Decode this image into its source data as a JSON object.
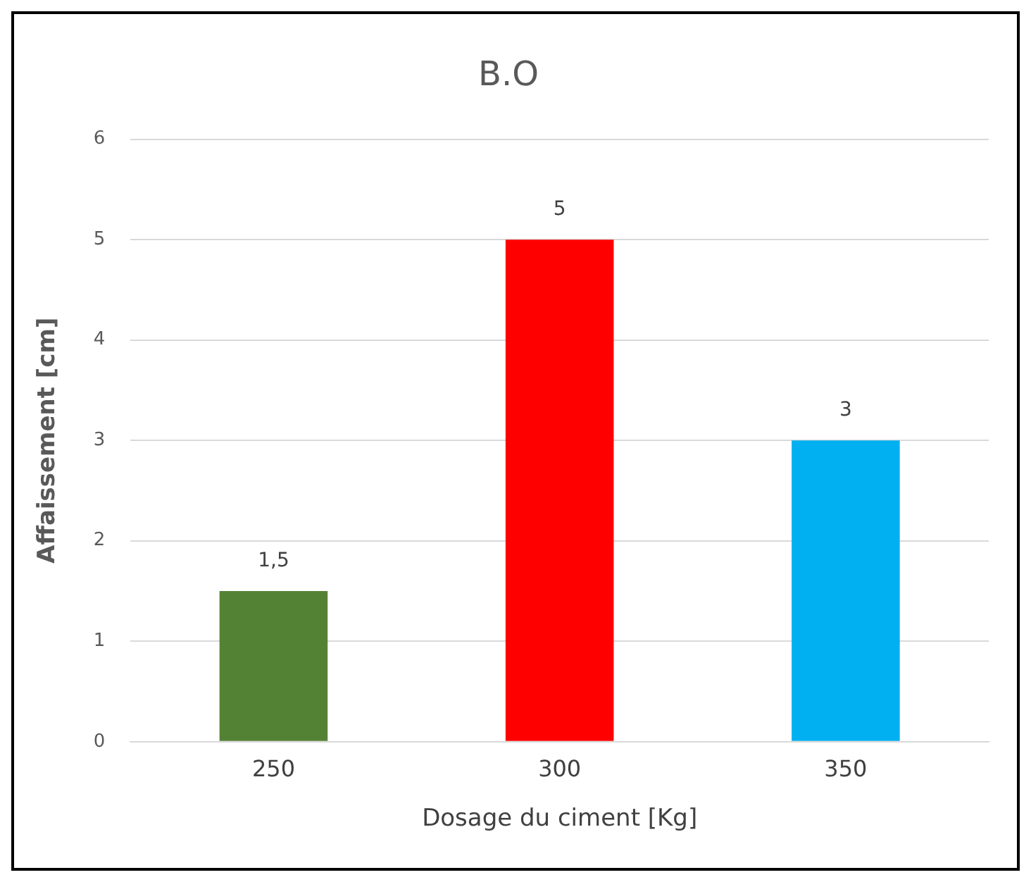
{
  "chart_data": {
    "type": "bar",
    "title": "B.O",
    "xlabel": "Dosage du ciment [Kg]",
    "ylabel": "Affaissement [cm]",
    "categories": [
      "250",
      "300",
      "350"
    ],
    "values": [
      1.5,
      5,
      3
    ],
    "colors": [
      "#548235",
      "#ff0000",
      "#00b0f0"
    ],
    "value_labels": [
      "1,5",
      "5",
      "3"
    ],
    "ylim": [
      0,
      6
    ],
    "yticks": [
      0,
      1,
      2,
      3,
      4,
      5,
      6
    ],
    "grid": "y",
    "legend": false
  }
}
